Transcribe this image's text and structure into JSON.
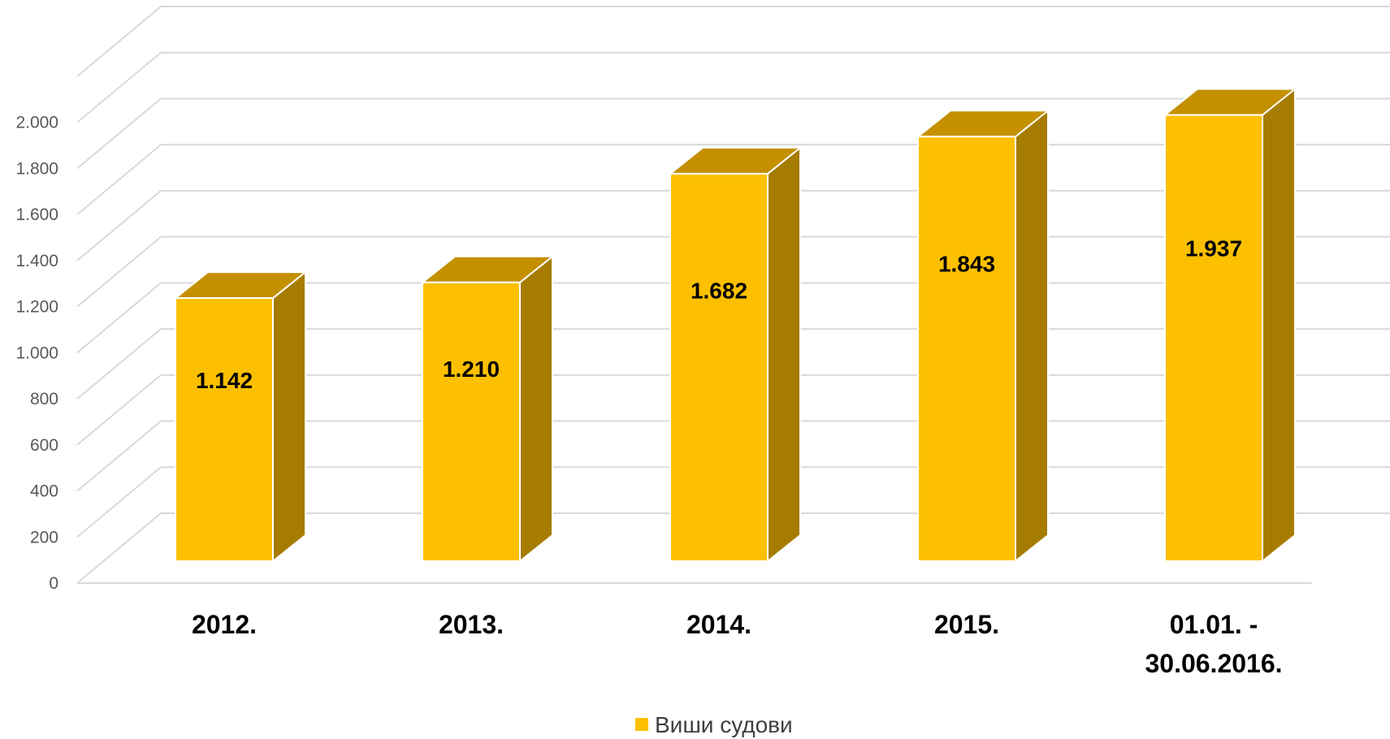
{
  "chart_data": {
    "type": "bar",
    "style": "3d-column",
    "categories": [
      "2012.",
      "2013.",
      "2014.",
      "2015.",
      "01.01. -\n30.06.2016."
    ],
    "series": [
      {
        "name": "Виши судови",
        "values": [
          1142,
          1210,
          1682,
          1843,
          1937
        ],
        "color": "#fdc000"
      }
    ],
    "data_labels": [
      "1.142",
      "1.210",
      "1.682",
      "1.843",
      "1.937"
    ],
    "y_ticks": [
      {
        "value": 0,
        "label": "0"
      },
      {
        "value": 200,
        "label": "200"
      },
      {
        "value": 400,
        "label": "400"
      },
      {
        "value": 600,
        "label": "600"
      },
      {
        "value": 800,
        "label": "800"
      },
      {
        "value": 1000,
        "label": "1.000"
      },
      {
        "value": 1200,
        "label": "1.200"
      },
      {
        "value": 1400,
        "label": "1.400"
      },
      {
        "value": 1600,
        "label": "1.600"
      },
      {
        "value": 1800,
        "label": "1.800"
      },
      {
        "value": 2000,
        "label": "2.000"
      }
    ],
    "ylim": [
      0,
      2200
    ],
    "grid": true,
    "legend_position": "bottom",
    "colors": {
      "front": "#fdc000",
      "top": "#c49000",
      "side": "#a67c00",
      "grid": "#d9d9d9"
    }
  }
}
